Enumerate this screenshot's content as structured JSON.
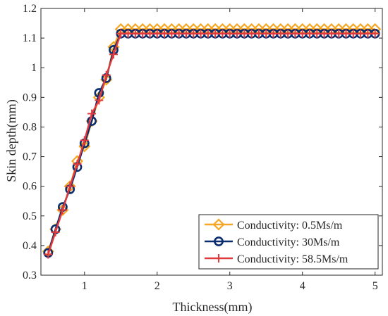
{
  "chart_data": {
    "type": "line",
    "xlabel": "Thickness(mm)",
    "ylabel": "Skin depth(mm)",
    "xlim": [
      0.4,
      5.1
    ],
    "ylim": [
      0.3,
      1.2
    ],
    "xticks": [
      1,
      2,
      3,
      4,
      5
    ],
    "xtick_labels": [
      "1",
      "2",
      "3",
      "4",
      "5"
    ],
    "yticks": [
      0.3,
      0.4,
      0.5,
      0.6,
      0.7,
      0.8,
      0.9,
      1.0,
      1.1,
      1.2
    ],
    "ytick_labels": [
      "0.3",
      "0.4",
      "0.5",
      "0.6",
      "0.7",
      "0.8",
      "0.9",
      "1",
      "1.1",
      "1.2"
    ],
    "grid": false,
    "legend_position": "bottom-right",
    "x": [
      0.5,
      0.6,
      0.7,
      0.8,
      0.9,
      1.0,
      1.1,
      1.2,
      1.3,
      1.4,
      1.5,
      1.6,
      1.7,
      1.8,
      1.9,
      2.0,
      2.1,
      2.2,
      2.3,
      2.4,
      2.5,
      2.6,
      2.7,
      2.8,
      2.9,
      3.0,
      3.1,
      3.2,
      3.3,
      3.4,
      3.5,
      3.6,
      3.7,
      3.8,
      3.9,
      4.0,
      4.1,
      4.2,
      4.3,
      4.4,
      4.5,
      4.6,
      4.7,
      4.8,
      4.9,
      5.0
    ],
    "series": [
      {
        "name": "Conductivity: 0.5Ms/m",
        "color": "#f5a623",
        "marker": "diamond",
        "values": [
          0.38,
          0.455,
          0.52,
          0.6,
          0.685,
          0.735,
          0.82,
          0.9,
          0.96,
          1.07,
          1.13,
          1.13,
          1.13,
          1.13,
          1.13,
          1.13,
          1.13,
          1.13,
          1.13,
          1.13,
          1.13,
          1.13,
          1.13,
          1.13,
          1.13,
          1.13,
          1.13,
          1.13,
          1.13,
          1.13,
          1.13,
          1.13,
          1.13,
          1.13,
          1.13,
          1.13,
          1.13,
          1.13,
          1.13,
          1.13,
          1.13,
          1.13,
          1.13,
          1.13,
          1.13,
          1.13
        ]
      },
      {
        "name": "Conductivity: 30Ms/m",
        "color": "#0a2d6e",
        "marker": "circle",
        "values": [
          0.375,
          0.455,
          0.53,
          0.59,
          0.665,
          0.745,
          0.82,
          0.915,
          0.965,
          1.06,
          1.115,
          1.115,
          1.115,
          1.115,
          1.115,
          1.115,
          1.115,
          1.115,
          1.115,
          1.115,
          1.115,
          1.115,
          1.115,
          1.115,
          1.115,
          1.115,
          1.115,
          1.115,
          1.115,
          1.115,
          1.115,
          1.115,
          1.115,
          1.115,
          1.115,
          1.115,
          1.115,
          1.115,
          1.115,
          1.115,
          1.115,
          1.115,
          1.115,
          1.115,
          1.115,
          1.115
        ]
      },
      {
        "name": "Conductivity: 58.5Ms/m",
        "color": "#e03a3e",
        "marker": "plus",
        "values": [
          0.37,
          0.445,
          0.52,
          0.6,
          0.675,
          0.755,
          0.845,
          0.89,
          0.975,
          1.045,
          1.115,
          1.115,
          1.115,
          1.115,
          1.115,
          1.115,
          1.115,
          1.115,
          1.115,
          1.115,
          1.115,
          1.115,
          1.115,
          1.115,
          1.115,
          1.115,
          1.115,
          1.115,
          1.115,
          1.115,
          1.115,
          1.115,
          1.115,
          1.115,
          1.115,
          1.115,
          1.115,
          1.115,
          1.115,
          1.115,
          1.115,
          1.115,
          1.115,
          1.115,
          1.115,
          1.115
        ]
      }
    ]
  }
}
